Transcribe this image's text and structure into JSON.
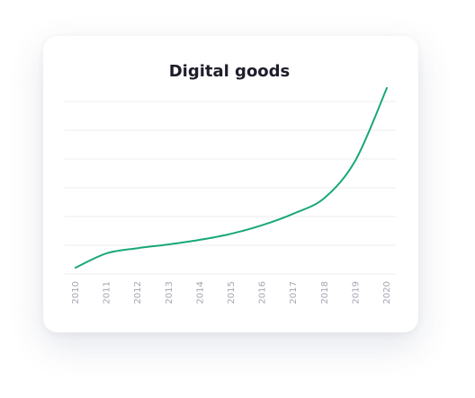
{
  "chart_data": {
    "type": "line",
    "title": "Digital goods",
    "categories": [
      "2010",
      "2011",
      "2012",
      "2013",
      "2014",
      "2015",
      "2016",
      "2017",
      "2018",
      "2019",
      "2020"
    ],
    "values": [
      0.22,
      0.72,
      0.9,
      1.03,
      1.19,
      1.4,
      1.7,
      2.1,
      2.65,
      3.97,
      6.47
    ],
    "color": "#1aa77a",
    "ylim": [
      0,
      6.6
    ],
    "yticks": [
      0,
      1,
      2,
      3,
      4,
      5,
      6
    ],
    "grid": true
  }
}
